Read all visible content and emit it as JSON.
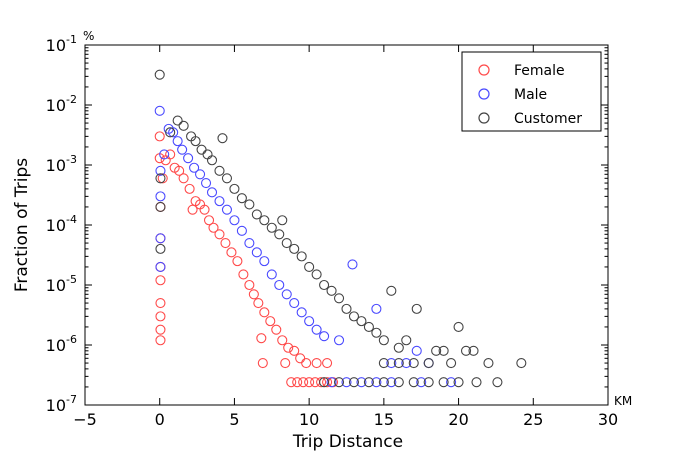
{
  "chart_data": {
    "type": "scatter",
    "title": "",
    "xlabel": "Trip Distance",
    "ylabel": "Fraction of Trips",
    "x_unit_label": "KM",
    "y_unit_label": "%",
    "xlim": [
      -5,
      30
    ],
    "ylim": [
      1e-07,
      0.1
    ],
    "yscale": "log",
    "grid": false,
    "legend_position": "top-right",
    "x_ticks": [
      -5,
      0,
      5,
      10,
      15,
      20,
      25,
      30
    ],
    "x_tick_labels": [
      "−5",
      "0",
      "5",
      "10",
      "15",
      "20",
      "25",
      "30"
    ],
    "y_ticks": [
      {
        "value": 1e-07,
        "base": "10",
        "exp": "-7"
      },
      {
        "value": 1e-06,
        "base": "10",
        "exp": "-6"
      },
      {
        "value": 1e-05,
        "base": "10",
        "exp": "-5"
      },
      {
        "value": 0.0001,
        "base": "10",
        "exp": "-4"
      },
      {
        "value": 0.001,
        "base": "10",
        "exp": "-3"
      },
      {
        "value": 0.01,
        "base": "10",
        "exp": "-2"
      },
      {
        "value": 0.1,
        "base": "10",
        "exp": "-1"
      }
    ],
    "series": [
      {
        "name": "Female",
        "color": "#ff4a4a",
        "points": [
          [
            0.0,
            0.003
          ],
          [
            0.0,
            0.0013
          ],
          [
            0.05,
            0.0002
          ],
          [
            0.05,
            6e-05
          ],
          [
            0.05,
            2e-05
          ],
          [
            0.05,
            1.2e-05
          ],
          [
            0.05,
            5e-06
          ],
          [
            0.05,
            3e-06
          ],
          [
            0.05,
            1.8e-06
          ],
          [
            0.05,
            1.2e-06
          ],
          [
            0.2,
            0.0006
          ],
          [
            0.4,
            0.0012
          ],
          [
            0.7,
            0.0015
          ],
          [
            1.0,
            0.0009
          ],
          [
            1.3,
            0.0008
          ],
          [
            1.6,
            0.0006
          ],
          [
            2.0,
            0.0004
          ],
          [
            2.2,
            0.00018
          ],
          [
            2.4,
            0.00025
          ],
          [
            2.7,
            0.00022
          ],
          [
            3.0,
            0.00018
          ],
          [
            3.3,
            0.00012
          ],
          [
            3.6,
            9e-05
          ],
          [
            4.0,
            7e-05
          ],
          [
            4.4,
            5e-05
          ],
          [
            4.8,
            3.5e-05
          ],
          [
            5.2,
            2.5e-05
          ],
          [
            5.6,
            1.5e-05
          ],
          [
            6.0,
            1e-05
          ],
          [
            6.3,
            7e-06
          ],
          [
            6.6,
            5e-06
          ],
          [
            7.0,
            3.5e-06
          ],
          [
            7.4,
            2.5e-06
          ],
          [
            7.8,
            1.8e-06
          ],
          [
            6.8,
            1.3e-06
          ],
          [
            8.2,
            1.2e-06
          ],
          [
            8.6,
            9e-07
          ],
          [
            9.0,
            8e-07
          ],
          [
            9.4,
            6e-07
          ],
          [
            6.9,
            5e-07
          ],
          [
            8.4,
            5e-07
          ],
          [
            9.8,
            5e-07
          ],
          [
            10.5,
            5e-07
          ],
          [
            11.2,
            5e-07
          ],
          [
            8.8,
            2.4e-07
          ],
          [
            9.2,
            2.4e-07
          ],
          [
            9.6,
            2.4e-07
          ],
          [
            10.0,
            2.4e-07
          ],
          [
            10.4,
            2.4e-07
          ],
          [
            10.8,
            2.4e-07
          ],
          [
            11.2,
            2.4e-07
          ],
          [
            11.6,
            2.4e-07
          ]
        ]
      },
      {
        "name": "Male",
        "color": "#4a4aff",
        "points": [
          [
            0.0,
            0.008
          ],
          [
            0.05,
            0.0008
          ],
          [
            0.05,
            0.0003
          ],
          [
            0.05,
            6e-05
          ],
          [
            0.05,
            2e-05
          ],
          [
            0.3,
            0.0015
          ],
          [
            0.6,
            0.004
          ],
          [
            0.9,
            0.0035
          ],
          [
            1.2,
            0.0025
          ],
          [
            1.5,
            0.0018
          ],
          [
            1.9,
            0.0013
          ],
          [
            2.3,
            0.0009
          ],
          [
            2.7,
            0.0007
          ],
          [
            3.1,
            0.0005
          ],
          [
            3.5,
            0.00035
          ],
          [
            4.0,
            0.00025
          ],
          [
            4.5,
            0.00018
          ],
          [
            5.0,
            0.00012
          ],
          [
            5.5,
            8e-05
          ],
          [
            6.0,
            5e-05
          ],
          [
            6.5,
            3.5e-05
          ],
          [
            7.0,
            2.5e-05
          ],
          [
            7.5,
            1.5e-05
          ],
          [
            8.0,
            1e-05
          ],
          [
            8.5,
            7e-06
          ],
          [
            9.0,
            5e-06
          ],
          [
            9.5,
            3.5e-06
          ],
          [
            10.0,
            2.5e-06
          ],
          [
            10.5,
            1.8e-06
          ],
          [
            11.0,
            1.4e-06
          ],
          [
            12.0,
            1.2e-06
          ],
          [
            12.9,
            2.2e-05
          ],
          [
            14.5,
            4e-06
          ],
          [
            17.2,
            8e-07
          ],
          [
            15.5,
            5e-07
          ],
          [
            16.5,
            5e-07
          ],
          [
            18.0,
            5e-07
          ],
          [
            11.5,
            2.4e-07
          ],
          [
            12.5,
            2.4e-07
          ],
          [
            13.5,
            2.4e-07
          ],
          [
            14.5,
            2.4e-07
          ],
          [
            15.5,
            2.4e-07
          ],
          [
            17.5,
            2.4e-07
          ],
          [
            19.5,
            2.4e-07
          ]
        ]
      },
      {
        "name": "Customer",
        "color": "#444444",
        "points": [
          [
            0.0,
            0.032
          ],
          [
            0.05,
            0.0006
          ],
          [
            0.05,
            0.0002
          ],
          [
            0.05,
            4e-05
          ],
          [
            0.7,
            0.0035
          ],
          [
            1.2,
            0.0055
          ],
          [
            1.6,
            0.0045
          ],
          [
            2.1,
            0.003
          ],
          [
            2.4,
            0.0025
          ],
          [
            2.8,
            0.0018
          ],
          [
            3.2,
            0.0015
          ],
          [
            3.5,
            0.0012
          ],
          [
            4.2,
            0.0028
          ],
          [
            4.0,
            0.0008
          ],
          [
            4.5,
            0.0006
          ],
          [
            5.0,
            0.0004
          ],
          [
            5.5,
            0.00028
          ],
          [
            6.0,
            0.00022
          ],
          [
            6.5,
            0.00015
          ],
          [
            7.0,
            0.00012
          ],
          [
            7.5,
            9e-05
          ],
          [
            8.0,
            7e-05
          ],
          [
            8.5,
            5e-05
          ],
          [
            8.2,
            0.00012
          ],
          [
            9.0,
            4e-05
          ],
          [
            9.5,
            3e-05
          ],
          [
            10.0,
            2e-05
          ],
          [
            10.5,
            1.5e-05
          ],
          [
            11.0,
            1e-05
          ],
          [
            11.5,
            8e-06
          ],
          [
            12.0,
            6e-06
          ],
          [
            12.5,
            4e-06
          ],
          [
            13.0,
            3e-06
          ],
          [
            13.5,
            2.5e-06
          ],
          [
            14.0,
            2e-06
          ],
          [
            14.5,
            1.6e-06
          ],
          [
            15.0,
            1.2e-06
          ],
          [
            16.0,
            9e-07
          ],
          [
            15.5,
            8e-06
          ],
          [
            17.2,
            4e-06
          ],
          [
            16.5,
            1.2e-06
          ],
          [
            18.5,
            8e-07
          ],
          [
            20.0,
            2e-06
          ],
          [
            21.0,
            8e-07
          ],
          [
            20.5,
            8e-07
          ],
          [
            19.0,
            8e-07
          ],
          [
            22.0,
            5e-07
          ],
          [
            24.2,
            5e-07
          ],
          [
            15.0,
            5e-07
          ],
          [
            16.0,
            5e-07
          ],
          [
            17.0,
            5e-07
          ],
          [
            18.0,
            5e-07
          ],
          [
            19.5,
            5e-07
          ],
          [
            11.0,
            2.4e-07
          ],
          [
            12.0,
            2.4e-07
          ],
          [
            13.0,
            2.4e-07
          ],
          [
            14.0,
            2.4e-07
          ],
          [
            15.0,
            2.4e-07
          ],
          [
            16.0,
            2.4e-07
          ],
          [
            17.0,
            2.4e-07
          ],
          [
            18.0,
            2.4e-07
          ],
          [
            19.0,
            2.4e-07
          ],
          [
            20.0,
            2.4e-07
          ],
          [
            21.2,
            2.4e-07
          ],
          [
            22.6,
            2.4e-07
          ]
        ]
      }
    ]
  }
}
